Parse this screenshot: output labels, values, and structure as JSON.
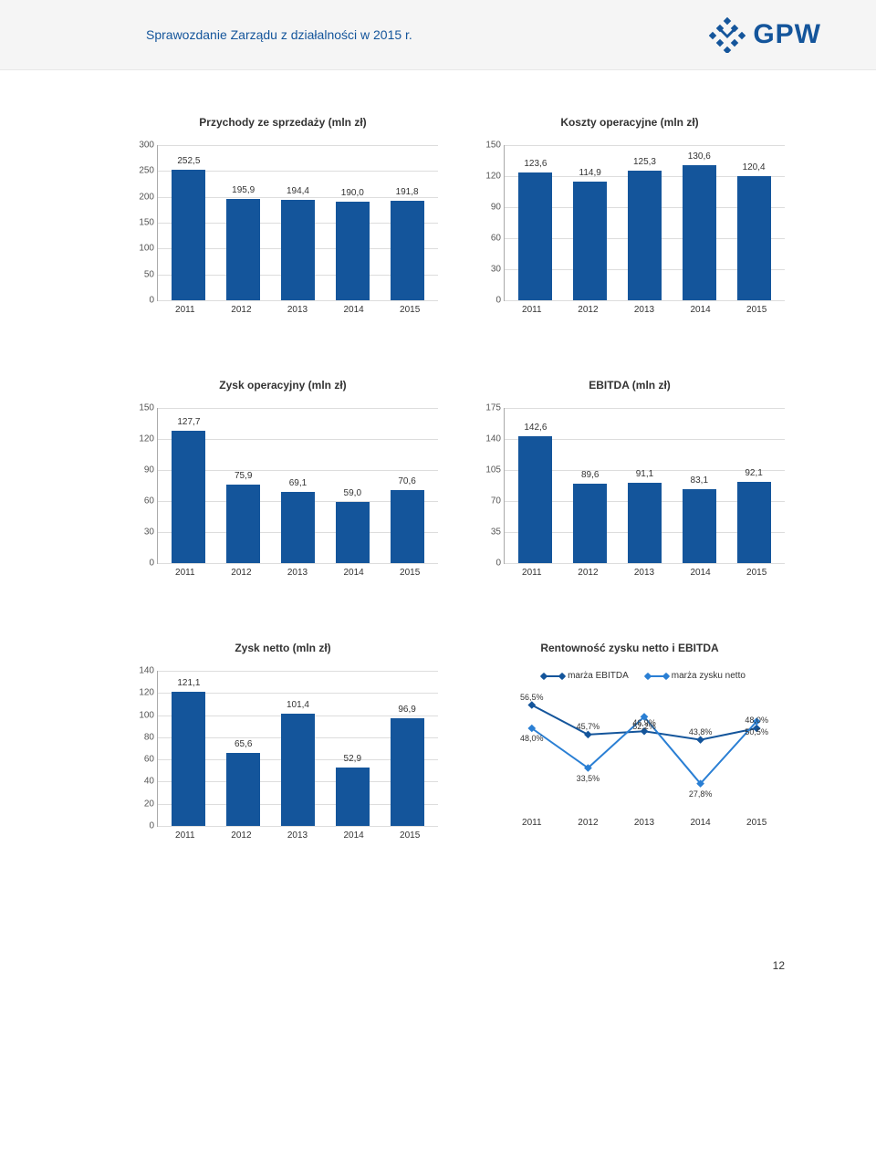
{
  "header_title": "Sprawozdanie Zarządu z działalności w 2015 r.",
  "logo_text": "GPW",
  "page_number": "12",
  "years": [
    "2011",
    "2012",
    "2013",
    "2014",
    "2015"
  ],
  "bar_color": "#14559b",
  "grid_color": "#dddddd",
  "charts": {
    "revenue": {
      "title": "Przychody ze sprzedaży (mln zł)",
      "ymax": 300,
      "ystep": 50,
      "values": [
        252.5,
        195.9,
        194.4,
        190.0,
        191.8
      ],
      "labels": [
        "252,5",
        "195,9",
        "194,4",
        "190,0",
        "191,8"
      ]
    },
    "opex": {
      "title": "Koszty operacyjne (mln zł)",
      "ymax": 150,
      "ystep": 30,
      "values": [
        123.6,
        114.9,
        125.3,
        130.6,
        120.4
      ],
      "labels": [
        "123,6",
        "114,9",
        "125,3",
        "130,6",
        "120,4"
      ]
    },
    "opprofit": {
      "title": "Zysk operacyjny (mln zł)",
      "ymax": 150,
      "ystep": 30,
      "values": [
        127.7,
        75.9,
        69.1,
        59.0,
        70.6
      ],
      "labels": [
        "127,7",
        "75,9",
        "69,1",
        "59,0",
        "70,6"
      ]
    },
    "ebitda": {
      "title": "EBITDA (mln zł)",
      "ymax": 175,
      "ystep": 35,
      "values": [
        142.6,
        89.6,
        91.1,
        83.1,
        92.1
      ],
      "labels": [
        "142,6",
        "89,6",
        "91,1",
        "83,1",
        "92,1"
      ]
    },
    "netprofit": {
      "title": "Zysk netto (mln zł)",
      "ymax": 140,
      "ystep": 20,
      "values": [
        121.1,
        65.6,
        101.4,
        52.9,
        96.9
      ],
      "labels": [
        "121,1",
        "65,6",
        "101,4",
        "52,9",
        "96,9"
      ]
    }
  },
  "linechart": {
    "title": "Rentowność zysku netto i EBITDA",
    "legend": {
      "s1": "marża EBITDA",
      "s2": "marża zysku netto"
    },
    "colors": {
      "s1": "#14559b",
      "s2": "#2a7fd4"
    },
    "ymin": 20,
    "ymax": 60,
    "series": {
      "s1": {
        "values": [
          56.5,
          45.7,
          46.9,
          43.8,
          48.0
        ],
        "labels": [
          "56,5%",
          "45,7%",
          "46,9%",
          "43,8%",
          "48,0%"
        ],
        "label_pos": [
          "above",
          "above",
          "above",
          "above",
          "above"
        ]
      },
      "s2": {
        "values": [
          48.0,
          33.5,
          52.2,
          27.8,
          50.5
        ],
        "labels": [
          "48,0%",
          "33,5%",
          "52,2%",
          "27,8%",
          "50,5%"
        ],
        "label_pos": [
          "below",
          "below",
          "below",
          "below",
          "below"
        ]
      }
    }
  }
}
